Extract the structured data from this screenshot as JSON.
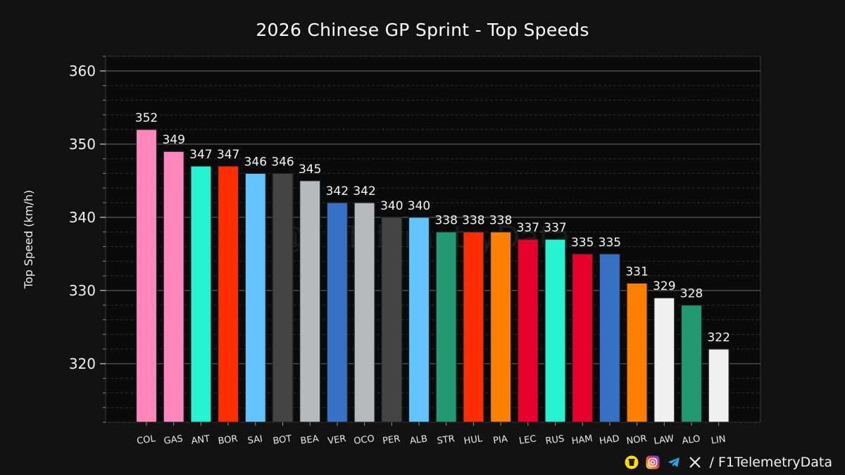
{
  "chart_data": {
    "type": "bar",
    "title": "2026 Chinese GP Sprint - Top Speeds",
    "ylabel": "Top Speed (km/h)",
    "xlabel": "",
    "ylim": [
      312,
      362
    ],
    "yticks": [
      320,
      330,
      340,
      350,
      360
    ],
    "grid": true,
    "watermark": "@F1TelemetryData",
    "categories": [
      "COL",
      "GAS",
      "ANT",
      "BOR",
      "SAI",
      "BOT",
      "BEA",
      "VER",
      "OCO",
      "PER",
      "ALB",
      "STR",
      "HUL",
      "PIA",
      "LEC",
      "RUS",
      "HAM",
      "HAD",
      "NOR",
      "LAW",
      "ALO",
      "LIN"
    ],
    "values": [
      352,
      349,
      347,
      347,
      346,
      346,
      345,
      342,
      342,
      340,
      340,
      338,
      338,
      338,
      337,
      337,
      335,
      335,
      331,
      329,
      328,
      322
    ],
    "colors": [
      "#ff87bc",
      "#ff87bc",
      "#27f4d2",
      "#ff2d00",
      "#64c4ff",
      "#444444",
      "#b6babd",
      "#3671c6",
      "#b6babd",
      "#444444",
      "#64c4ff",
      "#229971",
      "#ff2d00",
      "#ff8000",
      "#e8002d",
      "#27f4d2",
      "#e8002d",
      "#3671c6",
      "#ff8000",
      "#f0f0f0",
      "#229971",
      "#f0f0f0"
    ]
  },
  "footer": {
    "handle": "/ F1TelemetryData",
    "icons": [
      "buymeacoffee-icon",
      "instagram-icon",
      "telegram-icon",
      "x-icon"
    ]
  }
}
